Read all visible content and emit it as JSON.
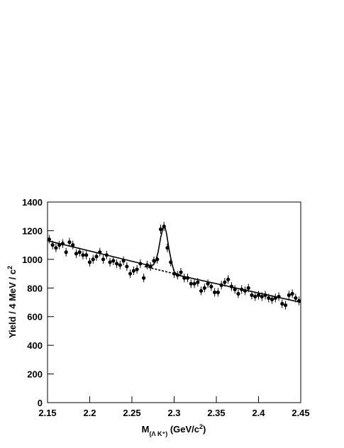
{
  "chart_data": {
    "type": "scatter",
    "xlabel": [
      "M",
      "(Λ K⁺)",
      " (GeV/c",
      "2",
      ")"
    ],
    "ylabel": [
      "Yield / 4 MeV / c",
      "2"
    ],
    "xlim": [
      2.15,
      2.45
    ],
    "ylim": [
      0,
      1400
    ],
    "xticks": [
      2.15,
      2.2,
      2.25,
      2.3,
      2.35,
      2.4,
      2.45
    ],
    "yticks": [
      0,
      200,
      400,
      600,
      800,
      1000,
      1200,
      1400
    ],
    "color": "#000000",
    "x": [
      2.152,
      2.156,
      2.16,
      2.164,
      2.168,
      2.172,
      2.176,
      2.18,
      2.184,
      2.188,
      2.192,
      2.196,
      2.2,
      2.204,
      2.208,
      2.212,
      2.216,
      2.22,
      2.224,
      2.228,
      2.232,
      2.236,
      2.24,
      2.244,
      2.248,
      2.252,
      2.256,
      2.26,
      2.264,
      2.268,
      2.272,
      2.276,
      2.28,
      2.284,
      2.288,
      2.292,
      2.296,
      2.3,
      2.304,
      2.308,
      2.312,
      2.316,
      2.32,
      2.324,
      2.328,
      2.332,
      2.336,
      2.34,
      2.344,
      2.348,
      2.352,
      2.356,
      2.36,
      2.364,
      2.368,
      2.372,
      2.376,
      2.38,
      2.384,
      2.388,
      2.392,
      2.396,
      2.4,
      2.404,
      2.408,
      2.412,
      2.416,
      2.42,
      2.424,
      2.428,
      2.432,
      2.436,
      2.44,
      2.444,
      2.448
    ],
    "values": [
      1140,
      1100,
      1080,
      1100,
      1110,
      1050,
      1120,
      1100,
      1040,
      1050,
      1030,
      1030,
      980,
      1000,
      1020,
      1050,
      1000,
      1030,
      980,
      990,
      970,
      960,
      990,
      950,
      900,
      920,
      930,
      970,
      870,
      960,
      950,
      990,
      1000,
      1210,
      1230,
      1080,
      980,
      900,
      890,
      910,
      870,
      870,
      830,
      830,
      840,
      780,
      800,
      830,
      810,
      770,
      770,
      820,
      840,
      860,
      810,
      790,
      760,
      790,
      780,
      800,
      750,
      740,
      750,
      740,
      750,
      730,
      720,
      730,
      740,
      690,
      680,
      750,
      760,
      730,
      710
    ],
    "errors": [
      30,
      30,
      30,
      30,
      30,
      30,
      30,
      30,
      30,
      30,
      30,
      30,
      30,
      30,
      30,
      30,
      30,
      30,
      30,
      30,
      30,
      30,
      30,
      30,
      30,
      30,
      30,
      30,
      30,
      30,
      30,
      30,
      30,
      32,
      32,
      30,
      30,
      30,
      30,
      30,
      30,
      30,
      30,
      30,
      30,
      30,
      30,
      30,
      30,
      30,
      30,
      30,
      30,
      30,
      30,
      30,
      30,
      30,
      30,
      30,
      30,
      30,
      30,
      30,
      30,
      30,
      30,
      30,
      30,
      30,
      30,
      30,
      30,
      30,
      30
    ],
    "fit": {
      "x": [
        2.15,
        2.27,
        2.275,
        2.278,
        2.281,
        2.284,
        2.287,
        2.289,
        2.291,
        2.294,
        2.297,
        2.3,
        2.304,
        2.45
      ],
      "values": [
        1130,
        958,
        960,
        985,
        1050,
        1150,
        1225,
        1230,
        1180,
        1070,
        980,
        915,
        890,
        700
      ]
    },
    "background": {
      "x": [
        2.265,
        2.31
      ],
      "values": [
        950,
        886
      ]
    }
  }
}
